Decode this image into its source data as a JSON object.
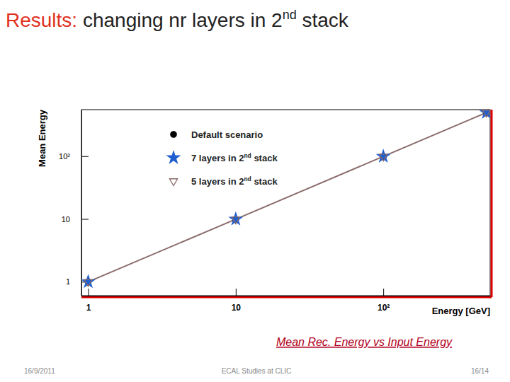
{
  "chart_data": {
    "type": "line",
    "xlabel": "Energy [GeV]",
    "ylabel": "Mean Energy",
    "x": [
      1,
      10,
      100,
      500
    ],
    "series": [
      {
        "name": "Default scenario",
        "color": "#000000",
        "marker": "circle",
        "line_style": "none",
        "values": [
          1,
          9.9,
          99,
          495
        ]
      },
      {
        "name": "7 layers in 2nd stack",
        "color": "#1f5fd0",
        "marker": "star",
        "line_style": "none",
        "values": [
          1,
          9.9,
          99,
          495
        ]
      },
      {
        "name": "5 layers in 2nd stack",
        "color": "#8b6b6b",
        "marker": "triangle-down",
        "line_style": "solid",
        "values": [
          1,
          9.9,
          99,
          495
        ]
      }
    ],
    "xlim": [
      0.9,
      530
    ],
    "ylim": [
      0.6,
      550
    ],
    "xticks": [
      1,
      10,
      {
        "value": 100,
        "label": "10²"
      }
    ],
    "yticks": [
      1,
      10,
      {
        "value": 100,
        "label": "10²"
      }
    ],
    "log": true,
    "grid": false,
    "legend": "top-left"
  },
  "slide": {
    "title_lead": "Results:",
    "title": "changing nr layers in 2nd stack",
    "caption": "Mean Rec. Energy vs Input Energy",
    "footer_date": "16/9/2011",
    "footer_text": "ECAL Studies at CLIC",
    "footer_page": "16/14"
  }
}
